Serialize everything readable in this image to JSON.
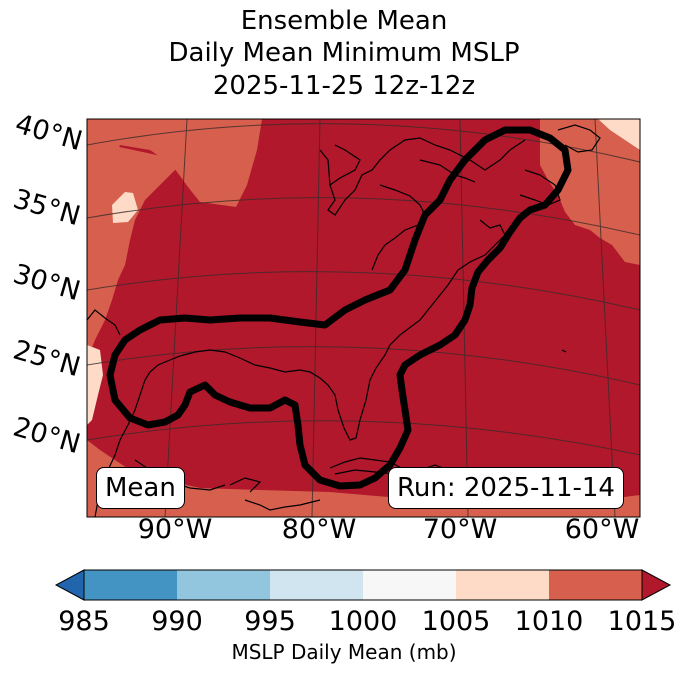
{
  "title": {
    "line1": "Ensemble Mean",
    "line2": "Daily Mean Minimum MSLP",
    "line3": "2025-11-25 12z-12z"
  },
  "map": {
    "lat_labels": [
      "40°N",
      "35°N",
      "30°N",
      "25°N",
      "20°N"
    ],
    "lon_labels": [
      "90°W",
      "80°W",
      "70°W",
      "60°W"
    ],
    "mean_label": "Mean",
    "run_label": "Run: 2025-11-14"
  },
  "colorbar": {
    "ticks": [
      "985",
      "990",
      "995",
      "1000",
      "1005",
      "1010",
      "1015"
    ],
    "label": "MSLP Daily Mean (mb)",
    "colors": [
      "#2166ac",
      "#4393c3",
      "#92c5de",
      "#d1e5f0",
      "#f7f7f7",
      "#fddbc7",
      "#d6604d",
      "#b2182b"
    ]
  },
  "contour": {
    "level_mb": 1015,
    "color": "#000000"
  }
}
